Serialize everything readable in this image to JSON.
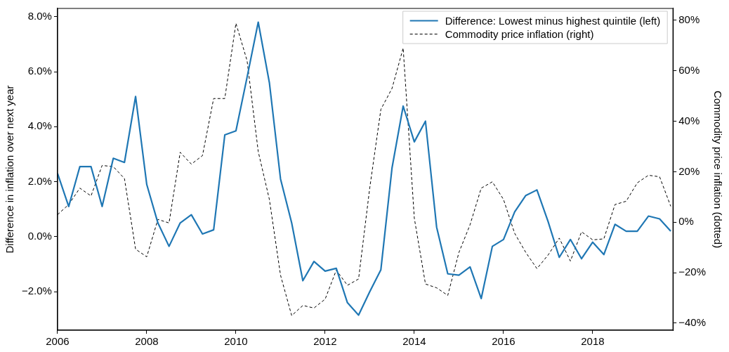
{
  "chart_data": {
    "type": "line",
    "ylabel": "Difference in inflation over next year",
    "y2label": "Commodity price inflation (dotted)",
    "x": [
      2006,
      2006.25,
      2006.5,
      2006.75,
      2007,
      2007.25,
      2007.5,
      2007.75,
      2008,
      2008.25,
      2008.5,
      2008.75,
      2009,
      2009.25,
      2009.5,
      2009.75,
      2010,
      2010.25,
      2010.5,
      2010.75,
      2011,
      2011.25,
      2011.5,
      2011.75,
      2012,
      2012.25,
      2012.5,
      2012.75,
      2013,
      2013.25,
      2013.5,
      2013.75,
      2014,
      2014.25,
      2014.5,
      2014.75,
      2015,
      2015.25,
      2015.5,
      2015.75,
      2016,
      2016.25,
      2016.5,
      2016.75,
      2017,
      2017.25,
      2017.5,
      2017.75,
      2018,
      2018.25,
      2018.5,
      2018.75,
      2019,
      2019.25,
      2019.5,
      2019.75
    ],
    "series": [
      {
        "name": "Difference: Lowest minus highest quintile (left)",
        "color": "#1f77b4",
        "line_style": "solid",
        "values": [
          2.3,
          1.1,
          2.55,
          2.55,
          1.1,
          2.85,
          2.7,
          5.1,
          1.9,
          0.5,
          -0.35,
          0.5,
          0.8,
          0.1,
          0.25,
          3.7,
          3.85,
          5.8,
          7.8,
          5.6,
          2.1,
          0.5,
          -1.6,
          -0.9,
          -1.25,
          -1.15,
          -2.4,
          -2.85,
          -2.0,
          -1.2,
          2.5,
          4.75,
          3.45,
          4.2,
          0.35,
          -1.35,
          -1.4,
          -1.1,
          -2.25,
          -0.35,
          -0.1,
          0.9,
          1.5,
          1.7,
          0.55,
          -0.75,
          -0.1,
          -0.8,
          -0.2,
          -0.65,
          0.45,
          0.2,
          0.2,
          0.75,
          0.65,
          0.2
        ]
      },
      {
        "name": "Commodity price inflation (right)",
        "color": "#000000",
        "line_style": "dashed",
        "axis": "y2",
        "values": [
          3,
          7,
          13.5,
          10.4,
          22.5,
          22,
          17.3,
          -10.7,
          -13.7,
          1.1,
          -0.3,
          27.7,
          23,
          26.4,
          49,
          49,
          78.8,
          64,
          28,
          9,
          -21,
          -37,
          -33,
          -34,
          -30.5,
          -19,
          -25,
          -22.5,
          13.5,
          44.7,
          53,
          69,
          1.6,
          -24.5,
          -26,
          -29,
          -12,
          -1,
          13.5,
          16,
          9,
          -4.4,
          -12,
          -18.4,
          -13,
          -6.3,
          -15.4,
          -3.8,
          -7,
          -6.6,
          7,
          8.3,
          15.6,
          18.6,
          18,
          6.3
        ]
      }
    ],
    "xlim": [
      2006,
      2019.8
    ],
    "xticks": [
      2006,
      2008,
      2010,
      2012,
      2014,
      2016,
      2018
    ],
    "ylim": [
      -3.4,
      8.3
    ],
    "yticks": [
      {
        "value": -2,
        "label": "−2.0%"
      },
      {
        "value": 0,
        "label": "0.0%"
      },
      {
        "value": 2,
        "label": "2.0%"
      },
      {
        "value": 4,
        "label": "4.0%"
      },
      {
        "value": 6,
        "label": "6.0%"
      },
      {
        "value": 8,
        "label": "8.0%"
      }
    ],
    "y2lim": [
      -42.8,
      84.7
    ],
    "y2ticks": [
      {
        "value": -40,
        "label": "−40%"
      },
      {
        "value": -20,
        "label": "−20%"
      },
      {
        "value": 0,
        "label": "0%"
      },
      {
        "value": 20,
        "label": "20%"
      },
      {
        "value": 40,
        "label": "40%"
      },
      {
        "value": 60,
        "label": "60%"
      },
      {
        "value": 80,
        "label": "80%"
      }
    ],
    "grid": false,
    "legend": "top right",
    "marker": "none"
  }
}
